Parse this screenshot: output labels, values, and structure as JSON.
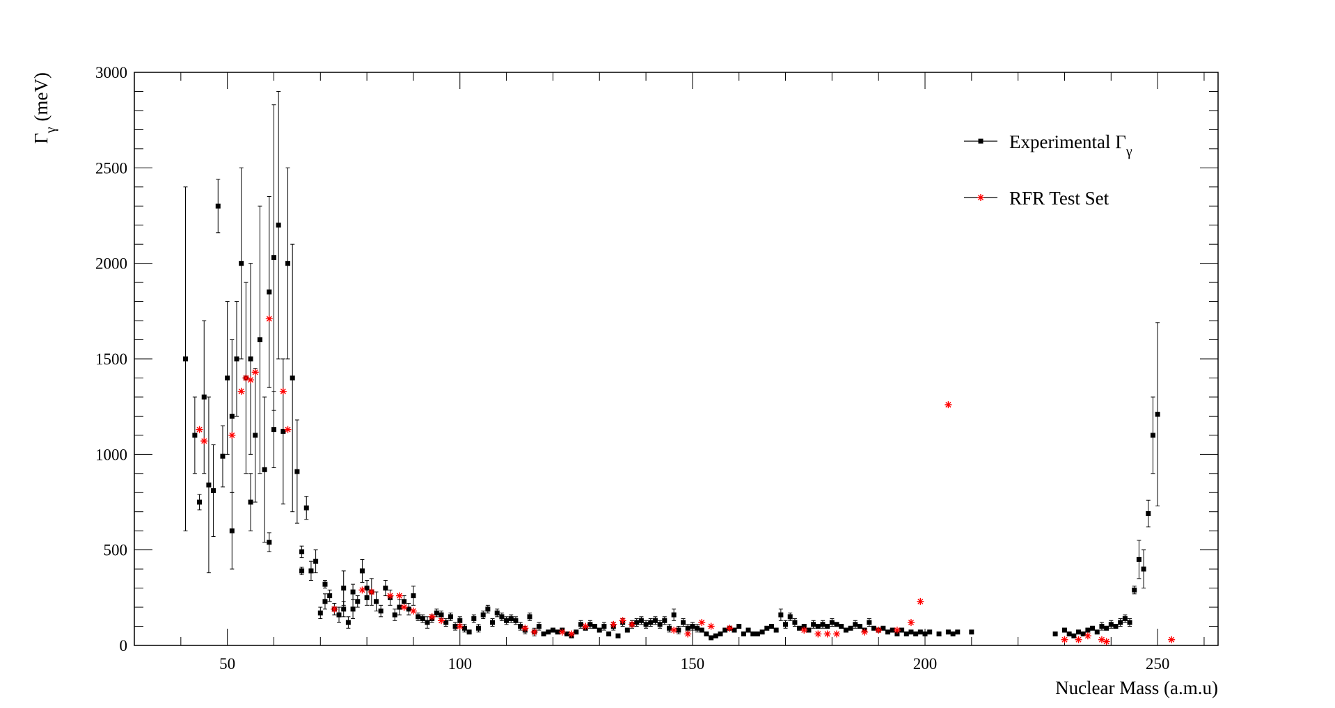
{
  "chart_data": {
    "type": "scatter",
    "title": "",
    "xlabel": "Nuclear Mass (a.m.u)",
    "ylabel_main": "Γ",
    "ylabel_sub": "γ",
    "ylabel_unit": "(meV)",
    "xlim": [
      30,
      263
    ],
    "ylim": [
      0,
      3000
    ],
    "x_ticks": [
      50,
      100,
      150,
      200,
      250
    ],
    "y_ticks": [
      0,
      500,
      1000,
      1500,
      2000,
      2500,
      3000
    ],
    "grid": false,
    "legend_position": "top-right",
    "legend": [
      {
        "label_main": "Experimental Γ",
        "label_sub": "γ"
      },
      {
        "label_main": "RFR Test Set",
        "label_sub": ""
      }
    ],
    "series": [
      {
        "name": "Experimental Γγ",
        "color": "#000000",
        "marker": "square",
        "points": [
          [
            41,
            1500,
            900
          ],
          [
            43,
            1100,
            200
          ],
          [
            44,
            750,
            40
          ],
          [
            45,
            1300,
            400
          ],
          [
            46,
            840,
            460
          ],
          [
            47,
            810,
            240
          ],
          [
            48,
            2300,
            140
          ],
          [
            49,
            990,
            160
          ],
          [
            50,
            1400,
            400
          ],
          [
            51,
            1200,
            400
          ],
          [
            51,
            600,
            200
          ],
          [
            52,
            1500,
            300
          ],
          [
            53,
            2000,
            500
          ],
          [
            54,
            1400,
            500
          ],
          [
            55,
            1500,
            500
          ],
          [
            55,
            750,
            150
          ],
          [
            56,
            1100,
            350
          ],
          [
            57,
            1600,
            700
          ],
          [
            58,
            920,
            380
          ],
          [
            59,
            1850,
            500
          ],
          [
            59,
            540,
            50
          ],
          [
            60,
            2030,
            800
          ],
          [
            60,
            1130,
            200
          ],
          [
            61,
            2200,
            700
          ],
          [
            62,
            1120,
            380
          ],
          [
            63,
            2000,
            500
          ],
          [
            64,
            1400,
            700
          ],
          [
            65,
            910,
            270
          ],
          [
            66,
            490,
            30
          ],
          [
            66,
            390,
            20
          ],
          [
            67,
            720,
            60
          ],
          [
            68,
            390,
            50
          ],
          [
            69,
            440,
            60
          ],
          [
            70,
            170,
            30
          ],
          [
            71,
            230,
            40
          ],
          [
            71,
            320,
            20
          ],
          [
            72,
            260,
            30
          ],
          [
            73,
            190,
            30
          ],
          [
            74,
            160,
            40
          ],
          [
            75,
            300,
            90
          ],
          [
            75,
            190,
            40
          ],
          [
            76,
            120,
            30
          ],
          [
            77,
            280,
            40
          ],
          [
            77,
            190,
            50
          ],
          [
            78,
            230,
            30
          ],
          [
            79,
            390,
            60
          ],
          [
            80,
            250,
            40
          ],
          [
            80,
            300,
            40
          ],
          [
            81,
            280,
            70
          ],
          [
            82,
            230,
            50
          ],
          [
            83,
            180,
            30
          ],
          [
            84,
            300,
            40
          ],
          [
            85,
            250,
            40
          ],
          [
            86,
            160,
            30
          ],
          [
            87,
            200,
            40
          ],
          [
            88,
            230,
            30
          ],
          [
            89,
            190,
            30
          ],
          [
            90,
            260,
            50
          ],
          [
            91,
            150,
            20
          ],
          [
            92,
            140,
            20
          ],
          [
            93,
            120,
            30
          ],
          [
            94,
            140,
            20
          ],
          [
            95,
            170,
            20
          ],
          [
            96,
            160,
            20
          ],
          [
            97,
            120,
            20
          ],
          [
            98,
            150,
            20
          ],
          [
            99,
            100,
            20
          ],
          [
            100,
            130,
            20
          ],
          [
            101,
            90,
            20
          ],
          [
            102,
            70,
            10
          ],
          [
            103,
            140,
            20
          ],
          [
            104,
            90,
            20
          ],
          [
            105,
            160,
            20
          ],
          [
            106,
            190,
            20
          ],
          [
            107,
            120,
            20
          ],
          [
            108,
            170,
            20
          ],
          [
            109,
            150,
            20
          ],
          [
            110,
            130,
            20
          ],
          [
            111,
            140,
            20
          ],
          [
            112,
            130,
            20
          ],
          [
            113,
            100,
            20
          ],
          [
            114,
            80,
            20
          ],
          [
            115,
            150,
            20
          ],
          [
            116,
            70,
            20
          ],
          [
            117,
            100,
            20
          ],
          [
            118,
            60,
            10
          ],
          [
            119,
            70,
            10
          ],
          [
            120,
            80,
            10
          ],
          [
            121,
            70,
            10
          ],
          [
            122,
            80,
            10
          ],
          [
            123,
            60,
            10
          ],
          [
            124,
            50,
            10
          ],
          [
            125,
            70,
            10
          ],
          [
            126,
            110,
            20
          ],
          [
            127,
            90,
            10
          ],
          [
            128,
            110,
            20
          ],
          [
            129,
            100,
            10
          ],
          [
            130,
            80,
            10
          ],
          [
            131,
            100,
            20
          ],
          [
            132,
            60,
            10
          ],
          [
            133,
            100,
            20
          ],
          [
            134,
            50,
            10
          ],
          [
            135,
            120,
            20
          ],
          [
            136,
            80,
            10
          ],
          [
            137,
            110,
            20
          ],
          [
            138,
            120,
            20
          ],
          [
            139,
            130,
            20
          ],
          [
            140,
            110,
            20
          ],
          [
            141,
            120,
            20
          ],
          [
            142,
            130,
            20
          ],
          [
            143,
            110,
            20
          ],
          [
            144,
            130,
            20
          ],
          [
            145,
            90,
            20
          ],
          [
            146,
            160,
            30
          ],
          [
            147,
            80,
            20
          ],
          [
            148,
            120,
            20
          ],
          [
            149,
            90,
            20
          ],
          [
            150,
            100,
            20
          ],
          [
            151,
            90,
            20
          ],
          [
            152,
            80,
            10
          ],
          [
            153,
            60,
            10
          ],
          [
            154,
            40,
            10
          ],
          [
            155,
            50,
            10
          ],
          [
            156,
            60,
            10
          ],
          [
            157,
            80,
            10
          ],
          [
            158,
            90,
            10
          ],
          [
            159,
            80,
            10
          ],
          [
            160,
            100,
            10
          ],
          [
            161,
            60,
            10
          ],
          [
            162,
            80,
            10
          ],
          [
            163,
            60,
            10
          ],
          [
            164,
            60,
            10
          ],
          [
            165,
            70,
            10
          ],
          [
            166,
            90,
            10
          ],
          [
            167,
            100,
            10
          ],
          [
            168,
            80,
            10
          ],
          [
            169,
            160,
            30
          ],
          [
            170,
            110,
            20
          ],
          [
            171,
            150,
            20
          ],
          [
            172,
            120,
            20
          ],
          [
            173,
            90,
            10
          ],
          [
            174,
            100,
            10
          ],
          [
            175,
            80,
            10
          ],
          [
            176,
            110,
            20
          ],
          [
            177,
            100,
            10
          ],
          [
            178,
            110,
            20
          ],
          [
            179,
            100,
            10
          ],
          [
            180,
            120,
            20
          ],
          [
            181,
            110,
            10
          ],
          [
            182,
            100,
            10
          ],
          [
            183,
            80,
            10
          ],
          [
            184,
            90,
            10
          ],
          [
            185,
            110,
            20
          ],
          [
            186,
            100,
            10
          ],
          [
            187,
            80,
            10
          ],
          [
            188,
            120,
            20
          ],
          [
            189,
            90,
            10
          ],
          [
            190,
            80,
            10
          ],
          [
            191,
            90,
            10
          ],
          [
            192,
            70,
            10
          ],
          [
            193,
            80,
            10
          ],
          [
            194,
            60,
            10
          ],
          [
            195,
            80,
            10
          ],
          [
            196,
            60,
            10
          ],
          [
            197,
            70,
            10
          ],
          [
            198,
            60,
            10
          ],
          [
            199,
            70,
            10
          ],
          [
            200,
            60,
            10
          ],
          [
            201,
            70,
            10
          ],
          [
            203,
            60,
            10
          ],
          [
            205,
            70,
            10
          ],
          [
            206,
            60,
            10
          ],
          [
            207,
            70,
            10
          ],
          [
            210,
            70,
            10
          ],
          [
            228,
            60,
            10
          ],
          [
            230,
            80,
            10
          ],
          [
            231,
            60,
            10
          ],
          [
            232,
            50,
            10
          ],
          [
            233,
            70,
            10
          ],
          [
            234,
            60,
            10
          ],
          [
            235,
            80,
            10
          ],
          [
            236,
            90,
            10
          ],
          [
            237,
            70,
            10
          ],
          [
            238,
            100,
            20
          ],
          [
            239,
            90,
            10
          ],
          [
            240,
            110,
            20
          ],
          [
            241,
            100,
            10
          ],
          [
            242,
            120,
            20
          ],
          [
            243,
            140,
            20
          ],
          [
            244,
            120,
            20
          ],
          [
            245,
            290,
            20
          ],
          [
            246,
            450,
            100
          ],
          [
            247,
            400,
            100
          ],
          [
            248,
            690,
            70
          ],
          [
            249,
            1100,
            200
          ],
          [
            250,
            1210,
            480
          ]
        ]
      },
      {
        "name": "RFR Test Set",
        "color": "#ff0000",
        "marker": "asterisk",
        "points": [
          [
            44,
            1130
          ],
          [
            45,
            1070
          ],
          [
            51,
            1100
          ],
          [
            53,
            1330
          ],
          [
            54,
            1400
          ],
          [
            55,
            1390
          ],
          [
            56,
            1430
          ],
          [
            59,
            1710
          ],
          [
            62,
            1330
          ],
          [
            63,
            1130
          ],
          [
            73,
            190
          ],
          [
            79,
            290
          ],
          [
            81,
            280
          ],
          [
            85,
            260
          ],
          [
            87,
            260
          ],
          [
            88,
            200
          ],
          [
            90,
            180
          ],
          [
            94,
            150
          ],
          [
            96,
            130
          ],
          [
            100,
            100
          ],
          [
            114,
            90
          ],
          [
            116,
            70
          ],
          [
            122,
            70
          ],
          [
            124,
            60
          ],
          [
            127,
            100
          ],
          [
            133,
            110
          ],
          [
            135,
            130
          ],
          [
            137,
            110
          ],
          [
            146,
            80
          ],
          [
            149,
            60
          ],
          [
            152,
            120
          ],
          [
            154,
            100
          ],
          [
            158,
            90
          ],
          [
            174,
            80
          ],
          [
            177,
            60
          ],
          [
            179,
            60
          ],
          [
            181,
            60
          ],
          [
            187,
            70
          ],
          [
            190,
            80
          ],
          [
            194,
            80
          ],
          [
            197,
            120
          ],
          [
            199,
            230
          ],
          [
            205,
            1260
          ],
          [
            230,
            30
          ],
          [
            233,
            30
          ],
          [
            235,
            50
          ],
          [
            238,
            30
          ],
          [
            239,
            20
          ],
          [
            253,
            30
          ]
        ]
      }
    ]
  }
}
